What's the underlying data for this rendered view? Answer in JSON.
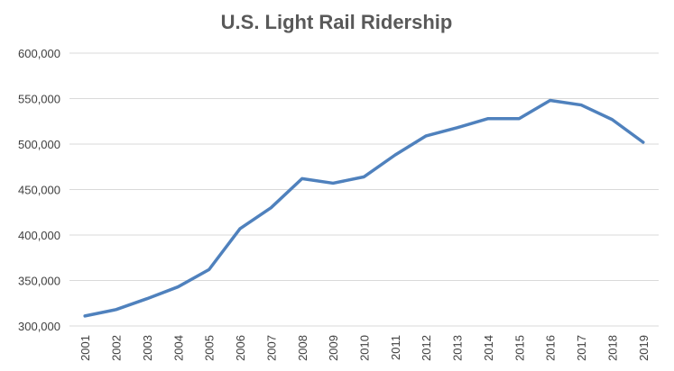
{
  "chart_data": {
    "type": "line",
    "title": "U.S. Light Rail Ridership",
    "xlabel": "",
    "ylabel": "",
    "categories": [
      "2001",
      "2002",
      "2003",
      "2004",
      "2005",
      "2006",
      "2007",
      "2008",
      "2009",
      "2010",
      "2011",
      "2012",
      "2013",
      "2014",
      "2015",
      "2016",
      "2017",
      "2018",
      "2019"
    ],
    "series": [
      {
        "values": [
          311000,
          318000,
          330000,
          343000,
          362000,
          407000,
          430000,
          462000,
          457000,
          464000,
          488000,
          509000,
          518000,
          528000,
          528000,
          548000,
          543000,
          527000,
          502000
        ],
        "color": "#4f81bd"
      }
    ],
    "ylim": [
      300000,
      600000
    ],
    "yticks": [
      "300,000",
      "350,000",
      "400,000",
      "450,000",
      "500,000",
      "550,000",
      "600,000"
    ],
    "grid": true,
    "legend": "none"
  }
}
